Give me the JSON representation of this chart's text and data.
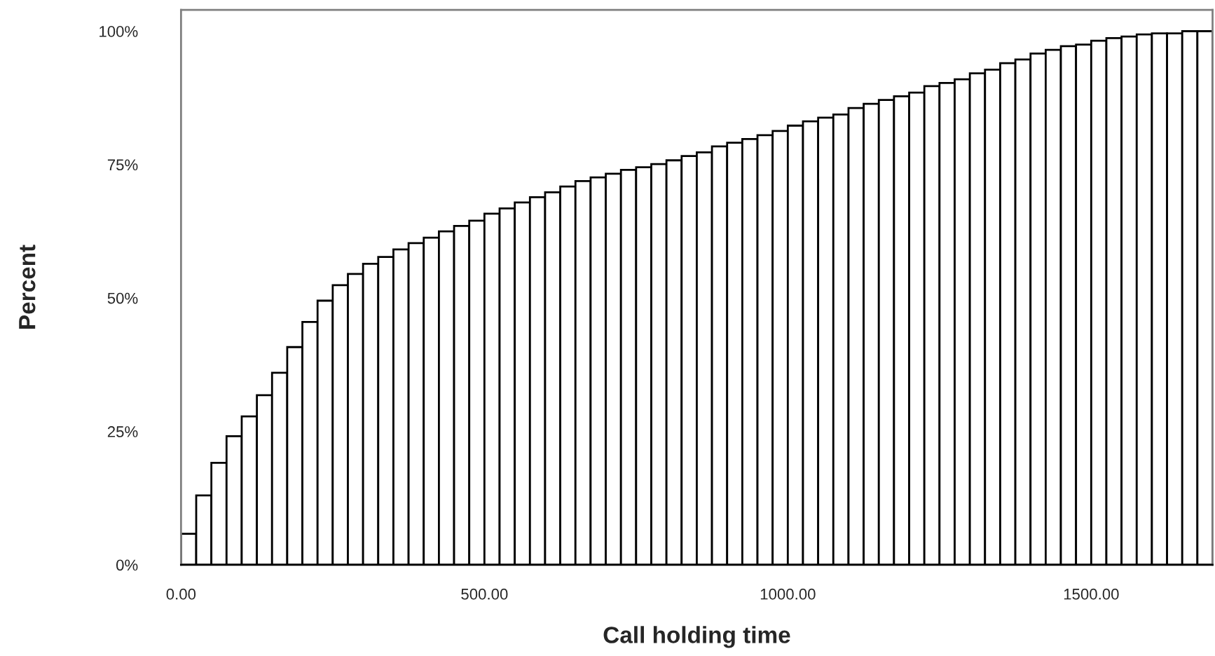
{
  "chart_data": {
    "type": "histogram",
    "xlabel": "Call holding time",
    "ylabel": "Percent",
    "bins": [
      0,
      25,
      50,
      75,
      100,
      125,
      150,
      175,
      200,
      225,
      250,
      275,
      300,
      325,
      350,
      375,
      400,
      425,
      450,
      475,
      500,
      525,
      550,
      575,
      600,
      625,
      650,
      675,
      700,
      725,
      750,
      775,
      800,
      825,
      850,
      875,
      900,
      925,
      950,
      975,
      1000,
      1025,
      1050,
      1075,
      1100,
      1125,
      1150,
      1175,
      1200,
      1225,
      1250,
      1275,
      1300,
      1325,
      1350,
      1375,
      1400,
      1425,
      1450,
      1475,
      1500,
      1525,
      1550,
      1575,
      1600,
      1625,
      1650,
      1675,
      1700
    ],
    "values": [
      5.8,
      13.0,
      19.1,
      24.1,
      27.8,
      31.8,
      36.0,
      40.8,
      45.5,
      49.5,
      52.4,
      54.5,
      56.4,
      57.7,
      59.1,
      60.3,
      61.3,
      62.5,
      63.5,
      64.5,
      65.8,
      66.8,
      67.9,
      68.9,
      69.8,
      70.9,
      71.9,
      72.6,
      73.3,
      74.0,
      74.5,
      75.1,
      75.8,
      76.6,
      77.3,
      78.4,
      79.1,
      79.8,
      80.5,
      81.3,
      82.3,
      83.1,
      83.8,
      84.4,
      85.6,
      86.4,
      87.1,
      87.8,
      88.5,
      89.7,
      90.3,
      91.0,
      92.1,
      92.8,
      94.0,
      94.7,
      95.8,
      96.5,
      97.2,
      97.5,
      98.2,
      98.7,
      99.0,
      99.4,
      99.6,
      99.6,
      100.0,
      100.0
    ],
    "color": "#ffffff",
    "xlim": [
      0,
      1700
    ],
    "ylim": [
      0,
      104
    ],
    "xticks": [
      {
        "value": 0,
        "label": "0.00"
      },
      {
        "value": 500,
        "label": "500.00"
      },
      {
        "value": 1000,
        "label": "1000.00"
      },
      {
        "value": 1500,
        "label": "1500.00"
      }
    ],
    "yticks": [
      {
        "value": 0,
        "label": "0%"
      },
      {
        "value": 25,
        "label": "25%"
      },
      {
        "value": 50,
        "label": "50%"
      },
      {
        "value": 75,
        "label": "75%"
      },
      {
        "value": 100,
        "label": "100%"
      }
    ],
    "grid": false,
    "legend": false
  }
}
